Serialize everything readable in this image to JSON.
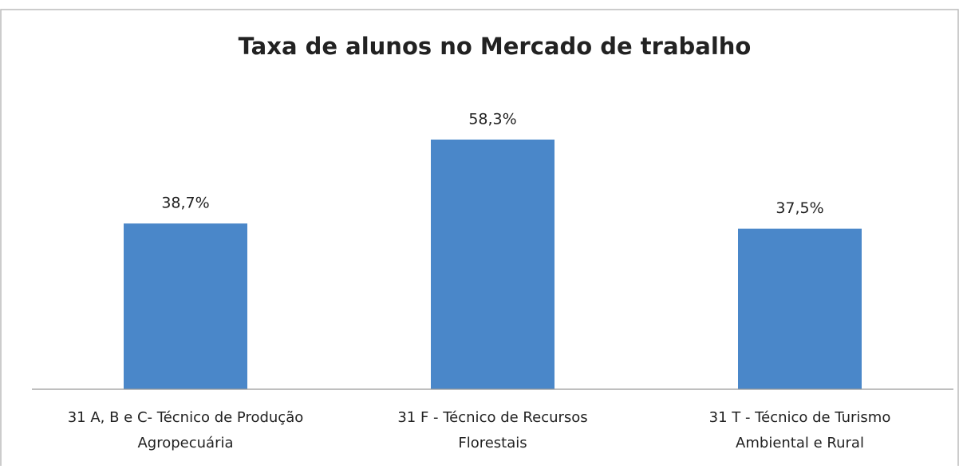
{
  "chart_data": {
    "type": "bar",
    "title": "Taxa de alunos no Mercado de trabalho",
    "categories": [
      [
        "31 A, B e C- Técnico de  Produção",
        "Agropecuária"
      ],
      [
        "31 F - Técnico de Recursos",
        "Florestais"
      ],
      [
        "31 T - Técnico de Turismo",
        "Ambiental e Rural"
      ]
    ],
    "values": [
      38.7,
      58.3,
      37.5
    ],
    "value_labels": [
      "38,7%",
      "58,3%",
      "37,5%"
    ],
    "color": "#4a87c9"
  }
}
